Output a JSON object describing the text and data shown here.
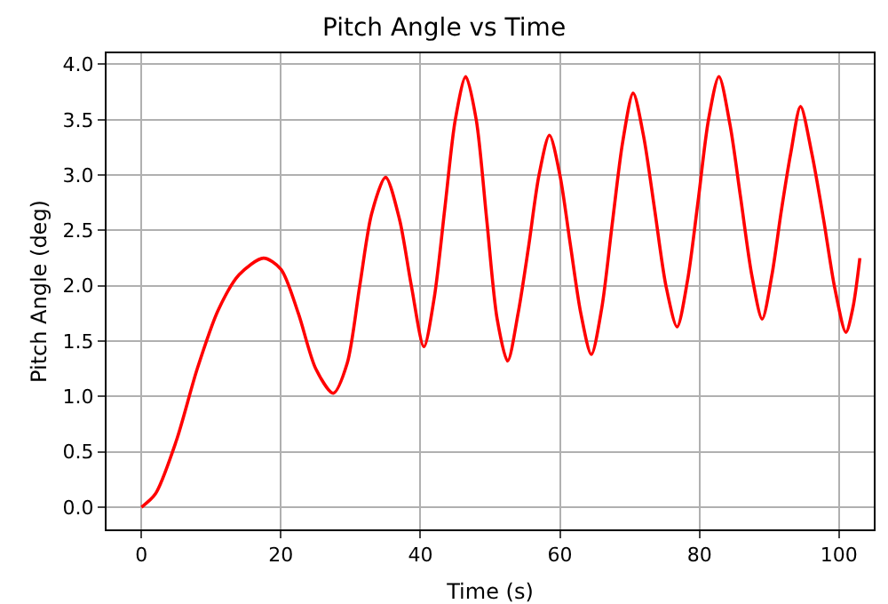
{
  "chart_data": {
    "type": "line",
    "title": "Pitch Angle vs Time",
    "xlabel": "Time (s)",
    "ylabel": "Pitch Angle (deg)",
    "x": [
      0,
      2,
      5,
      8,
      11,
      14,
      17.5,
      20,
      22.5,
      25,
      27.5,
      29.5,
      31.3,
      33,
      35,
      37,
      38.7,
      40.5,
      42,
      43.5,
      45,
      46.5,
      48,
      49.5,
      51,
      52.5,
      54,
      55.5,
      57,
      58.5,
      60,
      61.5,
      63,
      64.5,
      66,
      67.5,
      69,
      70.5,
      72,
      73.6,
      75.2,
      76.8,
      78.3,
      79.8,
      81.3,
      82.8,
      84.4,
      85.9,
      87.5,
      89,
      90.4,
      91.7,
      93.1,
      94.5,
      96.1,
      97.8,
      99.4,
      101,
      102,
      103
    ],
    "series": [
      {
        "color": "#ff0000",
        "values": [
          0,
          0.12,
          0.6,
          1.25,
          1.78,
          2.1,
          2.25,
          2.15,
          1.75,
          1.25,
          1.03,
          1.3,
          2.0,
          2.65,
          2.98,
          2.6,
          2.0,
          1.45,
          1.9,
          2.7,
          3.5,
          3.89,
          3.5,
          2.6,
          1.7,
          1.32,
          1.75,
          2.35,
          3.0,
          3.36,
          3.0,
          2.37,
          1.75,
          1.38,
          1.8,
          2.56,
          3.3,
          3.74,
          3.35,
          2.68,
          2.0,
          1.63,
          2.05,
          2.76,
          3.5,
          3.89,
          3.45,
          2.8,
          2.1,
          1.7,
          2.1,
          2.66,
          3.2,
          3.62,
          3.2,
          2.6,
          1.98,
          1.58,
          1.8,
          2.25
        ]
      }
    ],
    "xlim": [
      -5,
      105
    ],
    "xticks": [
      0,
      20,
      40,
      60,
      80,
      100
    ],
    "ylim": [
      -0.2,
      4.1
    ],
    "yticks": [
      {
        "value": 0,
        "label": "0.0"
      },
      {
        "value": 0.5,
        "label": "0.5"
      },
      {
        "value": 1,
        "label": "1.0"
      },
      {
        "value": 1.5,
        "label": "1.5"
      },
      {
        "value": 2,
        "label": "2.0"
      },
      {
        "value": 2.5,
        "label": "2.5"
      },
      {
        "value": 3,
        "label": "3.0"
      },
      {
        "value": 3.5,
        "label": "3.5"
      },
      {
        "value": 4,
        "label": "4.0"
      }
    ],
    "grid": true,
    "marker": "none",
    "line_style": "solid"
  }
}
